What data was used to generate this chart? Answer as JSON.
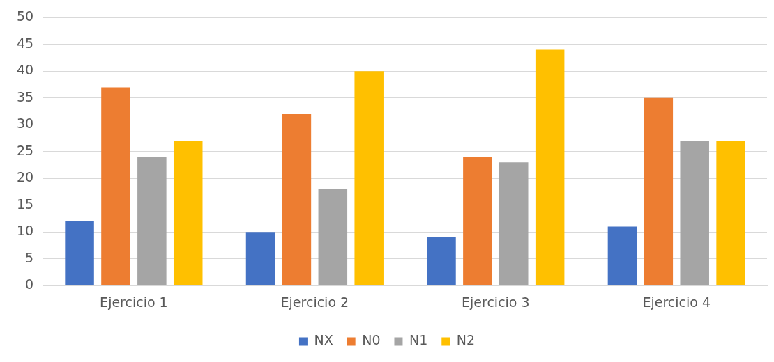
{
  "chart_data": {
    "type": "bar",
    "categories": [
      "Ejercicio 1",
      "Ejercicio 2",
      "Ejercicio 3",
      "Ejercicio 4"
    ],
    "series": [
      {
        "name": "NX",
        "color": "#4472c4",
        "values": [
          12,
          10,
          9,
          11
        ]
      },
      {
        "name": "N0",
        "color": "#ed7d31",
        "values": [
          37,
          32,
          24,
          35
        ]
      },
      {
        "name": "N1",
        "color": "#a5a5a5",
        "values": [
          24,
          18,
          23,
          27
        ]
      },
      {
        "name": "N2",
        "color": "#ffc000",
        "values": [
          27,
          40,
          44,
          27
        ]
      }
    ],
    "ylim": [
      0,
      50
    ],
    "yticks": [
      0,
      5,
      10,
      15,
      20,
      25,
      30,
      35,
      40,
      45,
      50
    ],
    "grid": "y",
    "legend": "bottom"
  }
}
